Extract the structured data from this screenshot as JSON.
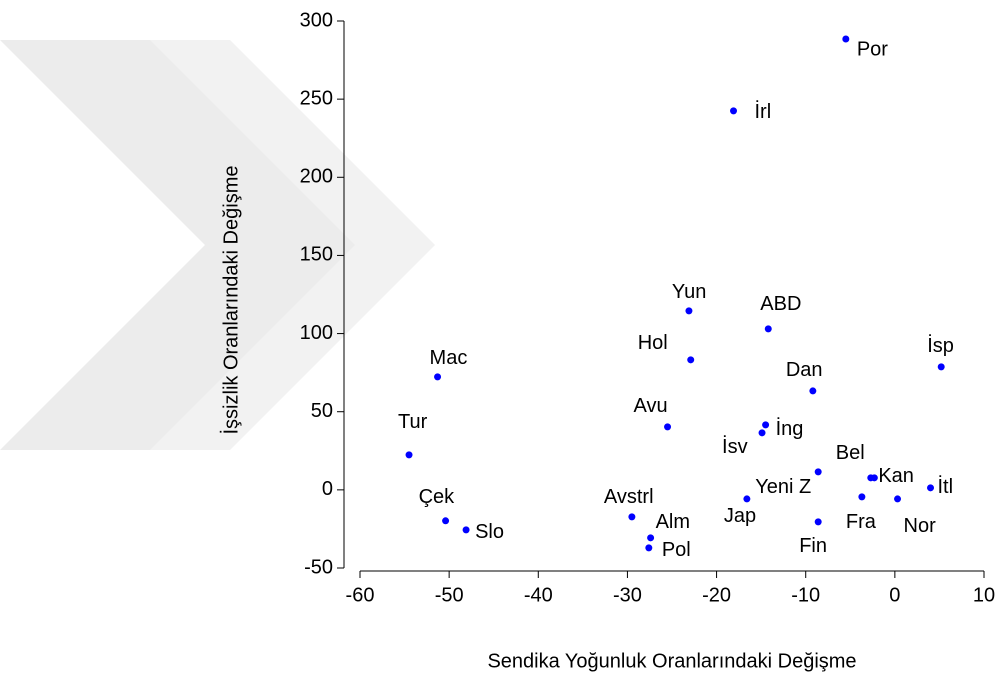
{
  "chart_data": {
    "type": "scatter",
    "xlabel": "Sendika Yoğunluk Oranlarındaki Değişme",
    "ylabel": "İşsizlik Oranlarındaki Değişme",
    "labels": [
      "Por",
      "İrl",
      "Yun",
      "Hol",
      "ABD",
      "İsp",
      "Mac",
      "Dan",
      "Avu",
      "İng",
      "İsv",
      "Tur",
      "Yeni Z",
      "Bel",
      "Kan",
      "İtl",
      "Jap",
      "Fra",
      "Nor",
      "Fin",
      "Avstrl",
      "Alm",
      "Pol",
      "Çek",
      "Slo"
    ],
    "x": [
      -5.5,
      -18.1,
      -23.1,
      -22.9,
      -14.2,
      5.2,
      -51.3,
      -9.2,
      -25.5,
      -14.5,
      -14.9,
      -54.5,
      -8.6,
      -2.7,
      -2.3,
      4.0,
      -16.6,
      -3.7,
      0.3,
      -8.6,
      -29.5,
      -27.4,
      -27.6,
      -50.4,
      -48.1
    ],
    "values": [
      288.5,
      242.5,
      114.5,
      83.2,
      103.0,
      78.7,
      72.3,
      63.3,
      40.3,
      41.6,
      36.5,
      22.4,
      11.5,
      7.7,
      7.7,
      1.3,
      -5.8,
      -4.5,
      -5.8,
      -20.5,
      -17.3,
      -30.7,
      -37.1,
      -19.8,
      -25.6
    ],
    "color": "#0000ff",
    "xlim": [
      -60,
      10
    ],
    "xticks": [
      -60,
      -50,
      -40,
      -30,
      -20,
      -10,
      0,
      10
    ],
    "ylim": [
      -50,
      300
    ],
    "yticks": [
      -50,
      0,
      50,
      100,
      150,
      200,
      250,
      300
    ]
  }
}
